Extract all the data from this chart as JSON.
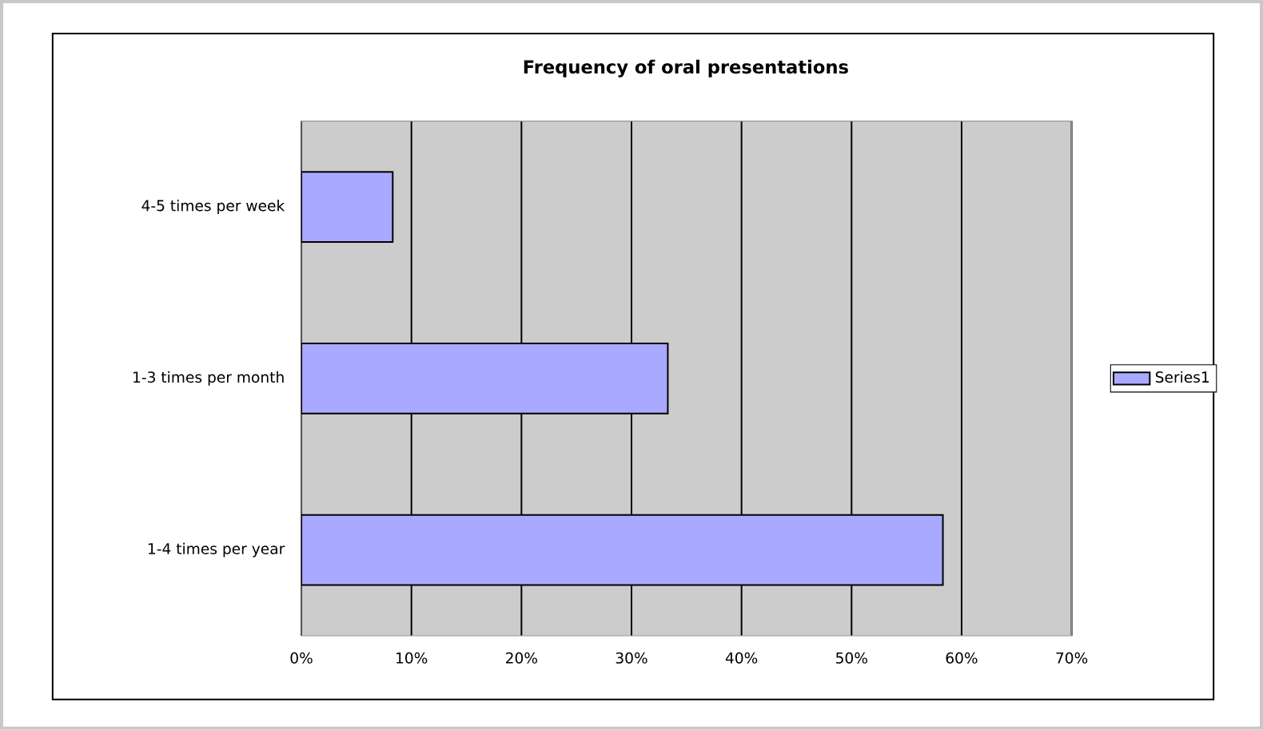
{
  "chart_data": {
    "type": "bar",
    "orientation": "horizontal",
    "title": "Frequency of oral presentations",
    "categories": [
      "4-5 times per week",
      "1-3 times per month",
      "1-4 times per year"
    ],
    "series": [
      {
        "name": "Series1",
        "color": "#a9a9ff",
        "values": [
          8.3,
          33.3,
          58.3
        ]
      }
    ],
    "xlim": [
      0,
      70
    ],
    "xticks": [
      {
        "value": 0,
        "label": "0%"
      },
      {
        "value": 10,
        "label": "10%"
      },
      {
        "value": 20,
        "label": "20%"
      },
      {
        "value": 30,
        "label": "30%"
      },
      {
        "value": 40,
        "label": "40%"
      },
      {
        "value": 50,
        "label": "50%"
      },
      {
        "value": 60,
        "label": "60%"
      },
      {
        "value": 70,
        "label": "70%"
      }
    ],
    "grid": "x",
    "legend": "right"
  }
}
